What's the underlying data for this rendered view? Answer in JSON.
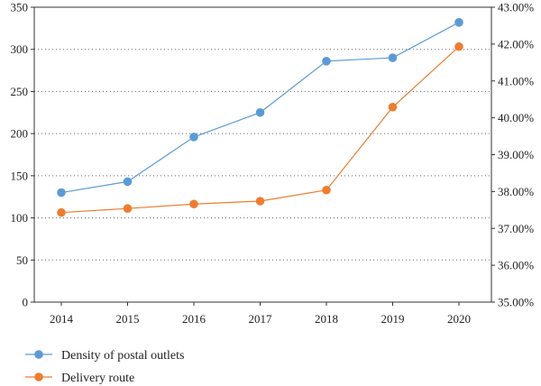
{
  "chart_data": {
    "type": "line",
    "categories": [
      "2014",
      "2015",
      "2016",
      "2017",
      "2018",
      "2019",
      "2020"
    ],
    "series": [
      {
        "name": "Density of postal outlets",
        "axis": "left",
        "color": "#5b9bd5",
        "values": [
          130,
          143,
          196,
          225,
          286,
          290,
          332
        ]
      },
      {
        "name": "Delivery route",
        "axis": "right",
        "color": "#ed7d31",
        "values": [
          37.43,
          37.54,
          37.66,
          37.74,
          38.04,
          40.29,
          41.93
        ]
      }
    ],
    "left_axis": {
      "ylim": [
        0,
        350
      ],
      "ticks": [
        "0",
        "50",
        "100",
        "150",
        "200",
        "250",
        "300",
        "350"
      ]
    },
    "right_axis": {
      "ylim": [
        35,
        43
      ],
      "ticks": [
        "35.00%",
        "36.00%",
        "37.00%",
        "38.00%",
        "39.00%",
        "40.00%",
        "41.00%",
        "42.00%",
        "43.00%"
      ]
    },
    "grid": "horizontal-dotted",
    "legend": "bottom-left"
  }
}
